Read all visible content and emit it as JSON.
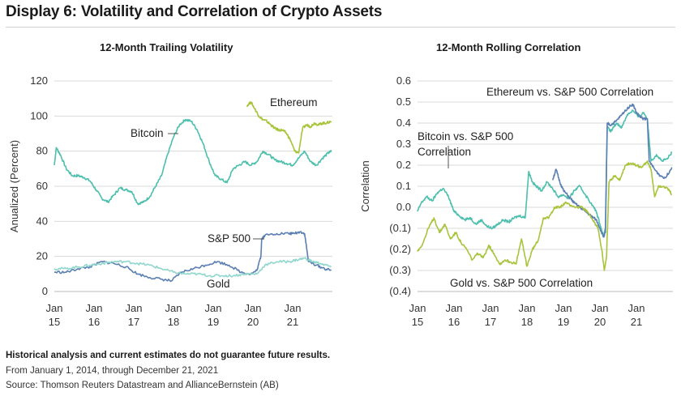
{
  "title": "Display 6: Volatility and Correlation of Crypto Assets",
  "footnote_bold": "Historical analysis and current estimates do not guarantee future results.",
  "footnote_period": "From January 1, 2014, through December 21, 2021",
  "footnote_source": "Source: Thomson Reuters Datastream and AllianceBernstein (AB)",
  "colors": {
    "bitcoin": "#4dbfad",
    "ethereum": "#a8c43a",
    "sp500": "#5b7fb3",
    "gold": "#8fd6cc",
    "grid": "#d9d9d9"
  },
  "chart_data": [
    {
      "type": "line",
      "title": "12-Month Trailing Volatility",
      "ylabel": "Anualized (Percent)",
      "xlabel": "",
      "ylim": [
        0,
        120
      ],
      "yticks": [
        "0",
        "20",
        "40",
        "60",
        "80",
        "100",
        "120"
      ],
      "xticks": [
        {
          "x": 2015,
          "line1": "Jan",
          "line2": "15"
        },
        {
          "x": 2016,
          "line1": "Jan",
          "line2": "16"
        },
        {
          "x": 2017,
          "line1": "Jan",
          "line2": "17"
        },
        {
          "x": 2018,
          "line1": "Jan",
          "line2": "18"
        },
        {
          "x": 2019,
          "line1": "Jan",
          "line2": "19"
        },
        {
          "x": 2020,
          "line1": "Jan",
          "line2": "20"
        },
        {
          "x": 2021,
          "line1": "Jan",
          "line2": "21"
        }
      ],
      "xlim": [
        2015,
        2022
      ],
      "grid": true,
      "series": [
        {
          "name": "Bitcoin",
          "color_key": "bitcoin",
          "x": [
            2015.0,
            2015.05,
            2015.15,
            2015.3,
            2015.45,
            2015.6,
            2015.75,
            2015.9,
            2016.05,
            2016.2,
            2016.35,
            2016.5,
            2016.65,
            2016.8,
            2016.95,
            2017.1,
            2017.25,
            2017.4,
            2017.55,
            2017.7,
            2017.85,
            2018.0,
            2018.15,
            2018.3,
            2018.45,
            2018.6,
            2018.75,
            2018.9,
            2019.05,
            2019.2,
            2019.35,
            2019.5,
            2019.65,
            2019.8,
            2019.95,
            2020.1,
            2020.25,
            2020.4,
            2020.55,
            2020.7,
            2020.85,
            2021.0,
            2021.15,
            2021.3,
            2021.45,
            2021.6,
            2021.75,
            2021.9,
            2021.97
          ],
          "y": [
            72,
            82,
            78,
            70,
            66,
            66,
            65,
            63,
            58,
            53,
            51,
            55,
            59,
            58,
            57,
            50,
            51,
            54,
            60,
            66,
            78,
            88,
            95,
            98,
            97,
            92,
            84,
            74,
            66,
            64,
            62,
            70,
            72,
            74,
            72,
            74,
            80,
            78,
            75,
            74,
            73,
            72,
            76,
            80,
            74,
            72,
            76,
            79,
            80
          ]
        },
        {
          "name": "Ethereum",
          "color_key": "ethereum",
          "x": [
            2019.85,
            2019.95,
            2020.05,
            2020.15,
            2020.25,
            2020.35,
            2020.45,
            2020.55,
            2020.65,
            2020.75,
            2020.85,
            2020.95,
            2021.05,
            2021.15,
            2021.25,
            2021.35,
            2021.45,
            2021.55,
            2021.65,
            2021.75,
            2021.85,
            2021.97
          ],
          "y": [
            106,
            108,
            104,
            100,
            98,
            97,
            95,
            93,
            92,
            92,
            90,
            86,
            80,
            79,
            93,
            95,
            94,
            96,
            95,
            96,
            96,
            97
          ]
        },
        {
          "name": "S&P 500",
          "color_key": "sp500",
          "x": [
            2015.0,
            2015.3,
            2015.6,
            2015.9,
            2016.2,
            2016.5,
            2016.8,
            2017.1,
            2017.4,
            2017.7,
            2017.95,
            2018.2,
            2018.5,
            2018.8,
            2019.1,
            2019.4,
            2019.7,
            2019.95,
            2020.1,
            2020.2,
            2020.22,
            2020.3,
            2020.6,
            2020.9,
            2021.0,
            2021.2,
            2021.3,
            2021.4,
            2021.6,
            2021.8,
            2021.97
          ],
          "y": [
            11,
            11,
            13,
            14,
            17,
            16,
            14,
            10,
            8,
            7,
            6,
            11,
            13,
            15,
            17,
            15,
            11,
            10,
            12,
            20,
            30,
            32,
            33,
            33,
            33,
            34,
            33,
            17,
            15,
            13,
            12
          ]
        },
        {
          "name": "Gold",
          "color_key": "gold",
          "x": [
            2015.0,
            2015.3,
            2015.6,
            2015.9,
            2016.2,
            2016.5,
            2016.8,
            2017.1,
            2017.4,
            2017.7,
            2018.0,
            2018.3,
            2018.6,
            2018.9,
            2019.2,
            2019.5,
            2019.8,
            2020.1,
            2020.3,
            2020.6,
            2020.9,
            2021.1,
            2021.3,
            2021.5,
            2021.7,
            2021.97
          ],
          "y": [
            13,
            13,
            14,
            15,
            16,
            17,
            17,
            16,
            15,
            13,
            11,
            10,
            10,
            9,
            9,
            9,
            10,
            10,
            15,
            17,
            17,
            18,
            19,
            17,
            16,
            14
          ]
        }
      ],
      "annotations": [
        "Bitcoin",
        "Ethereum",
        "S&P 500",
        "Gold"
      ]
    },
    {
      "type": "line",
      "title": "12-Month Rolling Correlation",
      "ylabel": "Correlation",
      "xlabel": "",
      "ylim": [
        -0.4,
        0.6
      ],
      "yticks": [
        "(0.4)",
        "(0.3)",
        "(0.2)",
        "(0.1)",
        "0.0",
        "0.1",
        "0.2",
        "0.3",
        "0.4",
        "0.5",
        "0.6"
      ],
      "xticks": [
        {
          "x": 2015,
          "line1": "Jan",
          "line2": "15"
        },
        {
          "x": 2016,
          "line1": "Jan",
          "line2": "16"
        },
        {
          "x": 2017,
          "line1": "Jan",
          "line2": "17"
        },
        {
          "x": 2018,
          "line1": "Jan",
          "line2": "18"
        },
        {
          "x": 2019,
          "line1": "Jan",
          "line2": "19"
        },
        {
          "x": 2020,
          "line1": "Jan",
          "line2": "20"
        },
        {
          "x": 2021,
          "line1": "Jan",
          "line2": "21"
        }
      ],
      "xlim": [
        2015,
        2022
      ],
      "grid": true,
      "series": [
        {
          "name": "Bitcoin vs. S&P 500 Correlation",
          "color_key": "bitcoin",
          "x": [
            2015.0,
            2015.1,
            2015.25,
            2015.4,
            2015.55,
            2015.7,
            2015.85,
            2016.0,
            2016.15,
            2016.3,
            2016.45,
            2016.6,
            2016.75,
            2016.9,
            2017.05,
            2017.2,
            2017.35,
            2017.5,
            2017.65,
            2017.8,
            2017.95,
            2018.05,
            2018.15,
            2018.25,
            2018.4,
            2018.55,
            2018.7,
            2018.85,
            2019.0,
            2019.15,
            2019.3,
            2019.45,
            2019.6,
            2019.75,
            2019.9,
            2020.0,
            2020.1,
            2020.15,
            2020.2,
            2020.3,
            2020.45,
            2020.6,
            2020.75,
            2020.9,
            2021.05,
            2021.2,
            2021.3,
            2021.4,
            2021.55,
            2021.7,
            2021.85,
            2021.97
          ],
          "y": [
            -0.02,
            0.02,
            0.05,
            0.03,
            0.07,
            0.09,
            0.05,
            -0.02,
            -0.04,
            -0.06,
            -0.05,
            -0.08,
            -0.06,
            -0.09,
            -0.1,
            -0.08,
            -0.06,
            -0.07,
            -0.05,
            -0.04,
            -0.05,
            0.17,
            0.12,
            0.1,
            0.08,
            0.12,
            0.09,
            0.05,
            0.06,
            0.04,
            0.08,
            0.1,
            0.06,
            0.02,
            -0.02,
            -0.08,
            -0.14,
            -0.1,
            0.38,
            0.36,
            0.4,
            0.38,
            0.44,
            0.46,
            0.43,
            0.45,
            0.42,
            0.22,
            0.25,
            0.22,
            0.23,
            0.26
          ]
        },
        {
          "name": "Ethereum vs. S&P 500 Correlation",
          "color_key": "sp500",
          "x": [
            2018.7,
            2018.8,
            2018.9,
            2019.0,
            2019.15,
            2019.3,
            2019.45,
            2019.6,
            2019.75,
            2019.9,
            2020.0,
            2020.1,
            2020.15,
            2020.2,
            2020.3,
            2020.45,
            2020.6,
            2020.75,
            2020.9,
            2021.0,
            2021.1,
            2021.2,
            2021.3,
            2021.35,
            2021.5,
            2021.65,
            2021.8,
            2021.97
          ],
          "y": [
            0.13,
            0.18,
            0.12,
            0.08,
            0.05,
            0.02,
            0.0,
            -0.02,
            -0.04,
            -0.06,
            -0.1,
            -0.14,
            -0.12,
            0.4,
            0.39,
            0.41,
            0.44,
            0.47,
            0.49,
            0.45,
            0.43,
            0.42,
            0.42,
            0.22,
            0.18,
            0.15,
            0.14,
            0.19
          ]
        },
        {
          "name": "Gold vs. S&P 500 Correlation",
          "color_key": "ethereum",
          "x": [
            2015.0,
            2015.15,
            2015.3,
            2015.45,
            2015.6,
            2015.75,
            2015.9,
            2016.05,
            2016.2,
            2016.35,
            2016.5,
            2016.65,
            2016.8,
            2016.95,
            2017.1,
            2017.25,
            2017.4,
            2017.55,
            2017.7,
            2017.85,
            2018.0,
            2018.15,
            2018.3,
            2018.45,
            2018.6,
            2018.75,
            2018.9,
            2019.05,
            2019.2,
            2019.35,
            2019.5,
            2019.65,
            2019.8,
            2019.95,
            2020.05,
            2020.12,
            2020.18,
            2020.25,
            2020.4,
            2020.55,
            2020.7,
            2020.85,
            2021.0,
            2021.15,
            2021.3,
            2021.4,
            2021.5,
            2021.6,
            2021.75,
            2021.9,
            2021.97
          ],
          "y": [
            -0.21,
            -0.17,
            -0.1,
            -0.05,
            -0.12,
            -0.08,
            -0.15,
            -0.12,
            -0.17,
            -0.2,
            -0.25,
            -0.22,
            -0.24,
            -0.18,
            -0.22,
            -0.27,
            -0.25,
            -0.26,
            -0.27,
            -0.15,
            -0.28,
            -0.2,
            -0.16,
            -0.05,
            -0.05,
            0.0,
            0.0,
            0.02,
            0.01,
            0.0,
            0.0,
            -0.02,
            -0.06,
            -0.1,
            -0.2,
            -0.3,
            -0.24,
            0.12,
            0.15,
            0.13,
            0.2,
            0.21,
            0.2,
            0.19,
            0.22,
            0.18,
            0.05,
            0.1,
            0.1,
            0.08,
            0.06
          ]
        }
      ],
      "annotations": [
        "Ethereum vs. S&P 500 Correlation",
        "Bitcoin vs. S&P 500",
        "Correlation",
        "Gold vs. S&P 500 Correlation"
      ]
    }
  ]
}
